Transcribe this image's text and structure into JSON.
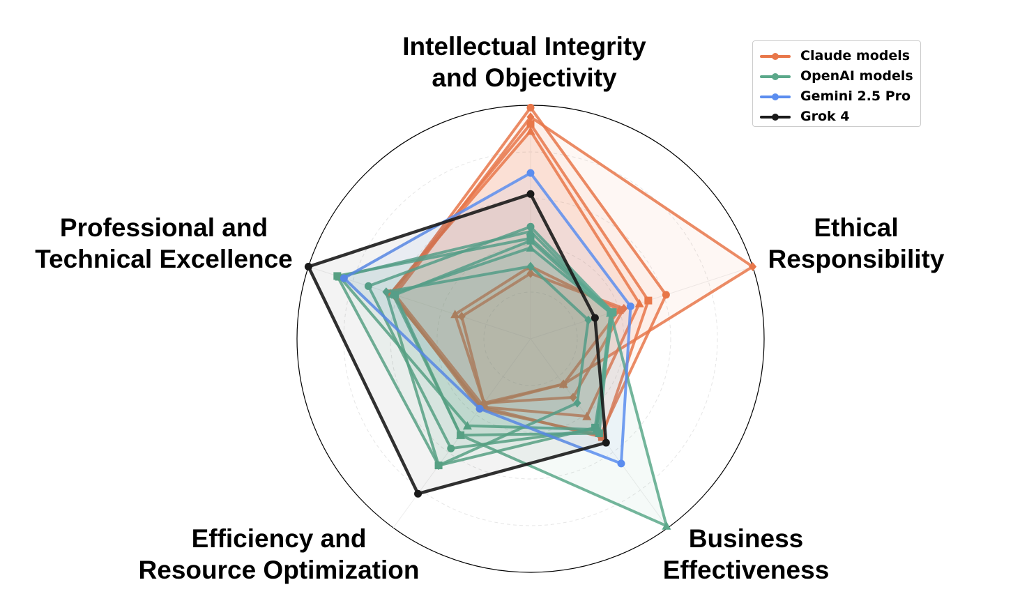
{
  "chart_data": {
    "type": "radar",
    "axes": [
      [
        "Intellectual Integrity",
        "and Objectivity"
      ],
      [
        "Ethical",
        "Responsibility"
      ],
      [
        "Business",
        "Effectiveness"
      ],
      [
        "Efficiency and",
        "Resource Optimization"
      ],
      [
        "Professional and",
        "Technical Excellence"
      ]
    ],
    "rmax": 1.0,
    "grid_levels": [
      0.2,
      0.4,
      0.6,
      0.8,
      1.0
    ],
    "legend": [
      {
        "name": "Claude models",
        "color": "#E8774A"
      },
      {
        "name": "OpenAI models",
        "color": "#5BA88A"
      },
      {
        "name": "Gemini 2.5 Pro",
        "color": "#5B8DEF"
      },
      {
        "name": "Grok 4",
        "color": "#1A1A1A"
      }
    ],
    "series": [
      {
        "group": "Claude models",
        "marker": "circle",
        "values": [
          0.99,
          0.61,
          0.51,
          0.37,
          0.62
        ]
      },
      {
        "group": "Claude models",
        "marker": "square",
        "values": [
          0.92,
          0.53,
          0.52,
          0.36,
          0.63
        ]
      },
      {
        "group": "Claude models",
        "marker": "triangle",
        "values": [
          0.89,
          0.49,
          0.41,
          0.36,
          0.63
        ]
      },
      {
        "group": "Claude models",
        "marker": "diamond",
        "values": [
          0.95,
          1.0,
          0.24,
          0.35,
          0.61
        ]
      },
      {
        "group": "Claude models",
        "marker": "diamond",
        "values": [
          0.28,
          0.42,
          0.31,
          0.34,
          0.31
        ]
      },
      {
        "group": "Claude models",
        "marker": "triangle",
        "values": [
          0.31,
          0.4,
          0.24,
          0.34,
          0.34
        ]
      },
      {
        "group": "OpenAI models",
        "marker": "circle",
        "values": [
          0.48,
          0.37,
          0.48,
          0.58,
          0.73
        ]
      },
      {
        "group": "OpenAI models",
        "marker": "square",
        "values": [
          0.43,
          0.37,
          0.47,
          0.67,
          0.87
        ]
      },
      {
        "group": "OpenAI models",
        "marker": "triangle",
        "values": [
          0.46,
          0.36,
          0.48,
          0.46,
          0.86
        ]
      },
      {
        "group": "OpenAI models",
        "marker": "diamond",
        "values": [
          0.31,
          0.26,
          0.34,
          0.67,
          0.65
        ]
      },
      {
        "group": "OpenAI models",
        "marker": "triangle",
        "values": [
          0.39,
          0.36,
          0.99,
          0.51,
          0.62
        ]
      },
      {
        "group": "OpenAI models",
        "marker": "square",
        "values": [
          0.42,
          0.36,
          0.5,
          0.51,
          0.61
        ]
      },
      {
        "group": "Gemini 2.5 Pro",
        "marker": "circle",
        "values": [
          0.71,
          0.45,
          0.66,
          0.37,
          0.84
        ]
      },
      {
        "group": "Grok 4",
        "marker": "circle",
        "values": [
          0.62,
          0.29,
          0.55,
          0.82,
          1.0
        ]
      }
    ]
  }
}
